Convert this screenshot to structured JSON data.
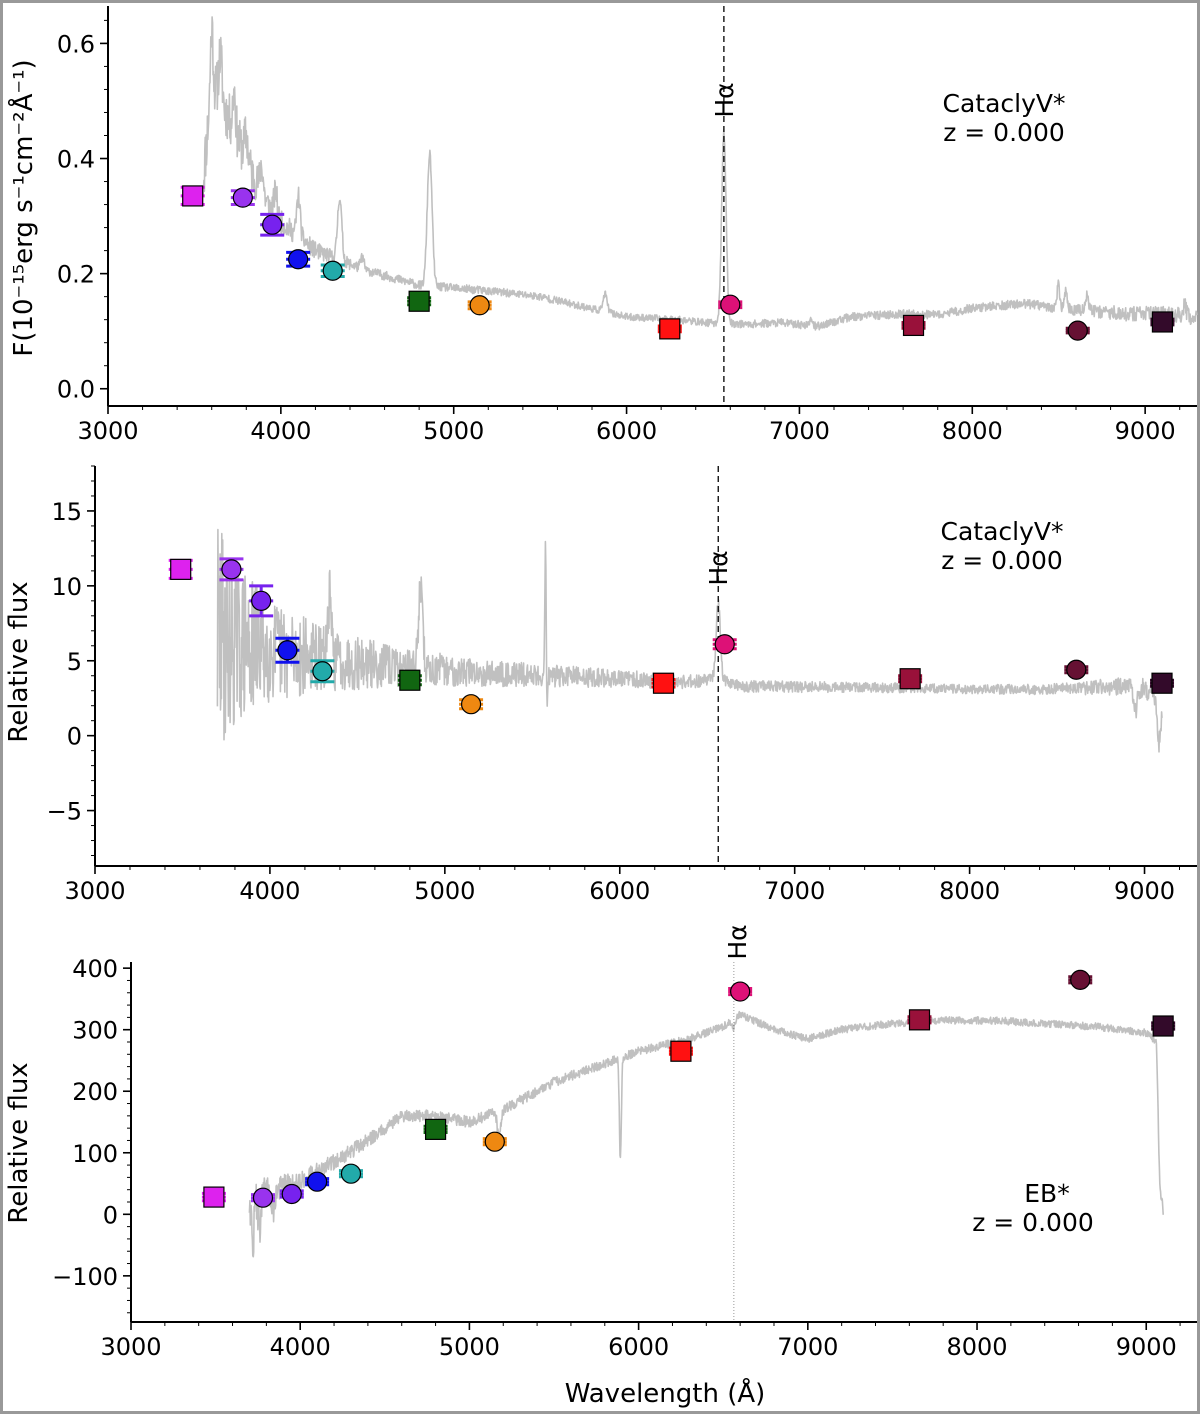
{
  "figure": {
    "border_color": "#999999",
    "spectrum_color": "#c0c0c0",
    "halpha_line_color": "#000000"
  },
  "chart_data": [
    {
      "type": "scatter",
      "title": "",
      "xlabel": "",
      "ylabel": "F(10⁻¹⁵erg s⁻¹cm⁻²Å⁻¹)",
      "xlim": [
        3000,
        9300
      ],
      "ylim": [
        -0.03,
        0.665
      ],
      "xticks": [
        3000,
        4000,
        5000,
        6000,
        7000,
        8000,
        9000
      ],
      "xtick_labels": [
        "3000",
        "4000",
        "5000",
        "6000",
        "7000",
        "8000",
        "9000"
      ],
      "yticks": [
        0.0,
        0.2,
        0.4,
        0.6
      ],
      "ytick_labels": [
        "0.0",
        "0.2",
        "0.4",
        "0.6"
      ],
      "annotation": {
        "object_class": "CataclyV*",
        "redshift": "z = 0.000"
      },
      "halpha": {
        "label": "Hα",
        "wavelength": 6563
      },
      "points": [
        {
          "x": 3490,
          "y": 0.335,
          "err": 0.015,
          "marker": "square",
          "color": "#dd22ee"
        },
        {
          "x": 3780,
          "y": 0.332,
          "err": 0.012,
          "marker": "circle",
          "color": "#9933ee"
        },
        {
          "x": 3950,
          "y": 0.285,
          "err": 0.018,
          "marker": "circle",
          "color": "#7722ee"
        },
        {
          "x": 4100,
          "y": 0.225,
          "err": 0.012,
          "marker": "circle",
          "color": "#1111ee"
        },
        {
          "x": 4300,
          "y": 0.205,
          "err": 0.01,
          "marker": "circle",
          "color": "#22aaaa"
        },
        {
          "x": 4800,
          "y": 0.152,
          "err": 0.006,
          "marker": "square",
          "color": "#116611"
        },
        {
          "x": 5150,
          "y": 0.145,
          "err": 0.006,
          "marker": "circle",
          "color": "#ee8811"
        },
        {
          "x": 6250,
          "y": 0.104,
          "err": 0.005,
          "marker": "square",
          "color": "#ff1111"
        },
        {
          "x": 6600,
          "y": 0.146,
          "err": 0.005,
          "marker": "circle",
          "color": "#dd1177"
        },
        {
          "x": 7660,
          "y": 0.11,
          "err": 0.005,
          "marker": "square",
          "color": "#99113a"
        },
        {
          "x": 8610,
          "y": 0.101,
          "err": 0.004,
          "marker": "circle",
          "color": "#661133"
        },
        {
          "x": 9100,
          "y": 0.116,
          "err": 0.005,
          "marker": "square",
          "color": "#330a2a"
        }
      ],
      "spectrum": {
        "x_range": [
          3550,
          9300
        ],
        "continuum": [
          [
            3550,
            0.36
          ],
          [
            3600,
            0.53
          ],
          [
            3700,
            0.47
          ],
          [
            3800,
            0.4
          ],
          [
            3900,
            0.33
          ],
          [
            4000,
            0.29
          ],
          [
            4200,
            0.24
          ],
          [
            4500,
            0.205
          ],
          [
            4800,
            0.18
          ],
          [
            5200,
            0.17
          ],
          [
            5500,
            0.16
          ],
          [
            6000,
            0.125
          ],
          [
            6300,
            0.12
          ],
          [
            6450,
            0.115
          ],
          [
            6700,
            0.112
          ],
          [
            6900,
            0.115
          ],
          [
            7100,
            0.108
          ],
          [
            7300,
            0.125
          ],
          [
            7600,
            0.13
          ],
          [
            7800,
            0.128
          ],
          [
            8000,
            0.14
          ],
          [
            8300,
            0.148
          ],
          [
            8500,
            0.14
          ],
          [
            8700,
            0.135
          ],
          [
            8900,
            0.13
          ],
          [
            9100,
            0.13
          ],
          [
            9300,
            0.125
          ]
        ],
        "noise": [
          [
            3550,
            0.05
          ],
          [
            3800,
            0.04
          ],
          [
            4000,
            0.02
          ],
          [
            4500,
            0.008
          ],
          [
            6000,
            0.006
          ],
          [
            8400,
            0.008
          ],
          [
            8800,
            0.012
          ],
          [
            9300,
            0.014
          ]
        ],
        "lines": [
          {
            "c": 3600,
            "a": 0.1,
            "w": 8
          },
          {
            "c": 3650,
            "a": 0.08,
            "w": 10
          },
          {
            "c": 3730,
            "a": 0.07,
            "w": 8
          },
          {
            "c": 3800,
            "a": 0.04,
            "w": 10
          },
          {
            "c": 3889,
            "a": 0.05,
            "w": 10
          },
          {
            "c": 3970,
            "a": 0.04,
            "w": 10
          },
          {
            "c": 4102,
            "a": 0.07,
            "w": 10
          },
          {
            "c": 4340,
            "a": 0.11,
            "w": 12
          },
          {
            "c": 4471,
            "a": 0.02,
            "w": 10
          },
          {
            "c": 4861,
            "a": 0.23,
            "w": 14
          },
          {
            "c": 5876,
            "a": 0.03,
            "w": 12
          },
          {
            "c": 6563,
            "a": 0.33,
            "w": 13
          },
          {
            "c": 7065,
            "a": 0.01,
            "w": 12
          },
          {
            "c": 8498,
            "a": 0.04,
            "w": 8
          },
          {
            "c": 8542,
            "a": 0.03,
            "w": 8
          },
          {
            "c": 8662,
            "a": 0.025,
            "w": 8
          },
          {
            "c": 9229,
            "a": 0.02,
            "w": 8
          }
        ],
        "seed": 11
      }
    },
    {
      "type": "scatter",
      "title": "",
      "xlabel": "",
      "ylabel": "Relative flux",
      "xlim": [
        3000,
        9300
      ],
      "ylim": [
        -8.7,
        18.0
      ],
      "xticks": [
        3000,
        4000,
        5000,
        6000,
        7000,
        8000,
        9000
      ],
      "xtick_labels": [
        "3000",
        "4000",
        "5000",
        "6000",
        "7000",
        "8000",
        "9000"
      ],
      "yticks": [
        -5,
        0,
        5,
        10,
        15
      ],
      "ytick_labels": [
        "−5",
        "0",
        "5",
        "10",
        "15"
      ],
      "annotation": {
        "object_class": "CataclyV*",
        "redshift": "z = 0.000"
      },
      "halpha": {
        "label": "Hα",
        "wavelength": 6563
      },
      "points": [
        {
          "x": 3490,
          "y": 11.1,
          "err": 0.6,
          "marker": "square",
          "color": "#dd22ee"
        },
        {
          "x": 3780,
          "y": 11.1,
          "err": 0.7,
          "marker": "circle",
          "color": "#9933ee"
        },
        {
          "x": 3950,
          "y": 9.0,
          "err": 1.0,
          "marker": "circle",
          "color": "#7722ee"
        },
        {
          "x": 4100,
          "y": 5.7,
          "err": 0.8,
          "marker": "circle",
          "color": "#1111ee"
        },
        {
          "x": 4300,
          "y": 4.3,
          "err": 0.7,
          "marker": "circle",
          "color": "#22aaaa"
        },
        {
          "x": 4800,
          "y": 3.7,
          "err": 0.3,
          "marker": "square",
          "color": "#116611"
        },
        {
          "x": 5150,
          "y": 2.1,
          "err": 0.3,
          "marker": "circle",
          "color": "#ee8811"
        },
        {
          "x": 6250,
          "y": 3.5,
          "err": 0.25,
          "marker": "square",
          "color": "#ff1111"
        },
        {
          "x": 6600,
          "y": 6.1,
          "err": 0.3,
          "marker": "circle",
          "color": "#dd1177"
        },
        {
          "x": 7660,
          "y": 3.8,
          "err": 0.2,
          "marker": "square",
          "color": "#99113a"
        },
        {
          "x": 8610,
          "y": 4.4,
          "err": 0.2,
          "marker": "circle",
          "color": "#661133"
        },
        {
          "x": 9100,
          "y": 3.5,
          "err": 0.2,
          "marker": "square",
          "color": "#330a2a"
        }
      ],
      "spectrum": {
        "x_range": [
          3700,
          9100
        ],
        "continuum": [
          [
            3700,
            6.5
          ],
          [
            3900,
            6.0
          ],
          [
            4100,
            5.5
          ],
          [
            4400,
            5.0
          ],
          [
            4800,
            4.5
          ],
          [
            5200,
            4.2
          ],
          [
            5600,
            4.0
          ],
          [
            6000,
            3.8
          ],
          [
            6400,
            3.6
          ],
          [
            6550,
            3.8
          ],
          [
            6700,
            3.3
          ],
          [
            7500,
            3.2
          ],
          [
            8000,
            3.1
          ],
          [
            8500,
            3.1
          ],
          [
            8900,
            3.3
          ],
          [
            9050,
            3.0
          ],
          [
            9100,
            1.0
          ]
        ],
        "noise": [
          [
            3700,
            9.0
          ],
          [
            3760,
            6.0
          ],
          [
            3850,
            5.0
          ],
          [
            4000,
            3.5
          ],
          [
            4300,
            2.2
          ],
          [
            4700,
            1.4
          ],
          [
            5200,
            0.9
          ],
          [
            6000,
            0.6
          ],
          [
            6600,
            0.4
          ],
          [
            8000,
            0.3
          ],
          [
            8600,
            0.4
          ],
          [
            9100,
            0.8
          ]
        ],
        "lines": [
          {
            "c": 4340,
            "a": 4.0,
            "w": 10
          },
          {
            "c": 4861,
            "a": 5.5,
            "w": 12
          },
          {
            "c": 5577,
            "a": 14.0,
            "w": 4
          },
          {
            "c": 5580,
            "a": -7.5,
            "w": 4
          },
          {
            "c": 6563,
            "a": 5.0,
            "w": 12
          },
          {
            "c": 8950,
            "a": -1.5,
            "w": 10
          },
          {
            "c": 9080,
            "a": -2.5,
            "w": 8
          }
        ],
        "seed": 29
      }
    },
    {
      "type": "scatter",
      "title": "",
      "xlabel": "Wavelength (Å)",
      "ylabel": "Relative flux",
      "xlim": [
        3000,
        9300
      ],
      "ylim": [
        -175,
        410
      ],
      "xticks": [
        3000,
        4000,
        5000,
        6000,
        7000,
        8000,
        9000
      ],
      "xtick_labels": [
        "3000",
        "4000",
        "5000",
        "6000",
        "7000",
        "8000",
        "9000"
      ],
      "yticks": [
        -100,
        0,
        100,
        200,
        300,
        400
      ],
      "ytick_labels": [
        "−100",
        "0",
        "100",
        "200",
        "300",
        "400"
      ],
      "annotation": {
        "object_class": "EB*",
        "redshift": "z = 0.000"
      },
      "halpha": {
        "label": "Hα",
        "wavelength": 6563
      },
      "points": [
        {
          "x": 3490,
          "y": 28,
          "err": 6,
          "marker": "square",
          "color": "#dd22ee"
        },
        {
          "x": 3780,
          "y": 27,
          "err": 5,
          "marker": "circle",
          "color": "#9933ee"
        },
        {
          "x": 3950,
          "y": 33,
          "err": 5,
          "marker": "circle",
          "color": "#7722ee"
        },
        {
          "x": 4100,
          "y": 53,
          "err": 5,
          "marker": "circle",
          "color": "#1111ee"
        },
        {
          "x": 4300,
          "y": 66,
          "err": 5,
          "marker": "circle",
          "color": "#22aaaa"
        },
        {
          "x": 4800,
          "y": 138,
          "err": 5,
          "marker": "square",
          "color": "#116611"
        },
        {
          "x": 5150,
          "y": 118,
          "err": 5,
          "marker": "circle",
          "color": "#ee8811"
        },
        {
          "x": 6250,
          "y": 265,
          "err": 5,
          "marker": "square",
          "color": "#ff1111"
        },
        {
          "x": 6600,
          "y": 362,
          "err": 5,
          "marker": "circle",
          "color": "#dd1177"
        },
        {
          "x": 7660,
          "y": 316,
          "err": 5,
          "marker": "square",
          "color": "#99113a"
        },
        {
          "x": 8610,
          "y": 381,
          "err": 5,
          "marker": "circle",
          "color": "#661133"
        },
        {
          "x": 9100,
          "y": 306,
          "err": 5,
          "marker": "square",
          "color": "#330a2a"
        }
      ],
      "spectrum": {
        "x_range": [
          3700,
          9100
        ],
        "continuum": [
          [
            3700,
            20
          ],
          [
            3800,
            35
          ],
          [
            4000,
            55
          ],
          [
            4200,
            85
          ],
          [
            4400,
            120
          ],
          [
            4600,
            160
          ],
          [
            4800,
            160
          ],
          [
            5000,
            150
          ],
          [
            5200,
            170
          ],
          [
            5500,
            215
          ],
          [
            5800,
            245
          ],
          [
            6000,
            265
          ],
          [
            6300,
            285
          ],
          [
            6500,
            305
          ],
          [
            6600,
            325
          ],
          [
            6800,
            300
          ],
          [
            7000,
            285
          ],
          [
            7200,
            300
          ],
          [
            7500,
            310
          ],
          [
            7800,
            315
          ],
          [
            8100,
            315
          ],
          [
            8400,
            310
          ],
          [
            8700,
            305
          ],
          [
            9000,
            295
          ],
          [
            9060,
            280
          ],
          [
            9100,
            0
          ]
        ],
        "noise": [
          [
            3700,
            35
          ],
          [
            3800,
            25
          ],
          [
            4000,
            15
          ],
          [
            4500,
            10
          ],
          [
            5500,
            8
          ],
          [
            6500,
            6
          ],
          [
            9100,
            6
          ]
        ],
        "lines": [
          {
            "c": 3720,
            "a": -85,
            "w": 6
          },
          {
            "c": 3760,
            "a": -50,
            "w": 8
          },
          {
            "c": 3840,
            "a": -30,
            "w": 10
          },
          {
            "c": 5175,
            "a": -40,
            "w": 10
          },
          {
            "c": 5892,
            "a": -165,
            "w": 6
          },
          {
            "c": 6563,
            "a": -15,
            "w": 10
          },
          {
            "c": 9080,
            "a": -90,
            "w": 8
          }
        ],
        "seed": 47
      }
    }
  ]
}
